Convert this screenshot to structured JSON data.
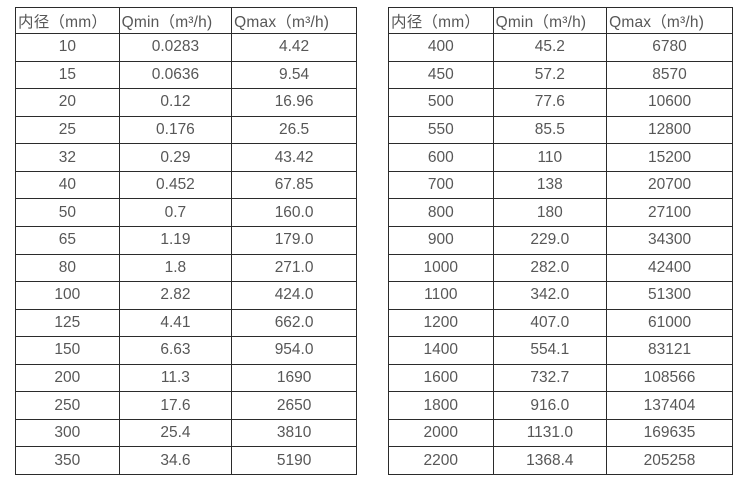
{
  "colors": {
    "border": "#2b2b2b",
    "text": "#575757",
    "background": "#ffffff"
  },
  "chart_data": [
    {
      "type": "table",
      "title": "",
      "columns": [
        "内径（mm）",
        "Qmin（m³/h)",
        "Qmax（m³/h)"
      ],
      "rows": [
        [
          "10",
          "0.0283",
          "4.42"
        ],
        [
          "15",
          "0.0636",
          "9.54"
        ],
        [
          "20",
          "0.12",
          "16.96"
        ],
        [
          "25",
          "0.176",
          "26.5"
        ],
        [
          "32",
          "0.29",
          "43.42"
        ],
        [
          "40",
          "0.452",
          "67.85"
        ],
        [
          "50",
          "0.7",
          "160.0"
        ],
        [
          "65",
          "1.19",
          "179.0"
        ],
        [
          "80",
          "1.8",
          "271.0"
        ],
        [
          "100",
          "2.82",
          "424.0"
        ],
        [
          "125",
          "4.41",
          "662.0"
        ],
        [
          "150",
          "6.63",
          "954.0"
        ],
        [
          "200",
          "11.3",
          "1690"
        ],
        [
          "250",
          "17.6",
          "2650"
        ],
        [
          "300",
          "25.4",
          "3810"
        ],
        [
          "350",
          "34.6",
          "5190"
        ]
      ]
    },
    {
      "type": "table",
      "title": "",
      "columns": [
        "内径（mm）",
        "Qmin（m³/h)",
        "Qmax（m³/h)"
      ],
      "rows": [
        [
          "400",
          "45.2",
          "6780"
        ],
        [
          "450",
          "57.2",
          "8570"
        ],
        [
          "500",
          "77.6",
          "10600"
        ],
        [
          "550",
          "85.5",
          "12800"
        ],
        [
          "600",
          "110",
          "15200"
        ],
        [
          "700",
          "138",
          "20700"
        ],
        [
          "800",
          "180",
          "27100"
        ],
        [
          "900",
          "229.0",
          "34300"
        ],
        [
          "1000",
          "282.0",
          "42400"
        ],
        [
          "1100",
          "342.0",
          "51300"
        ],
        [
          "1200",
          "407.0",
          "61000"
        ],
        [
          "1400",
          "554.1",
          "83121"
        ],
        [
          "1600",
          "732.7",
          "108566"
        ],
        [
          "1800",
          "916.0",
          "137404"
        ],
        [
          "2000",
          "1131.0",
          "169635"
        ],
        [
          "2200",
          "1368.4",
          "205258"
        ]
      ]
    }
  ]
}
